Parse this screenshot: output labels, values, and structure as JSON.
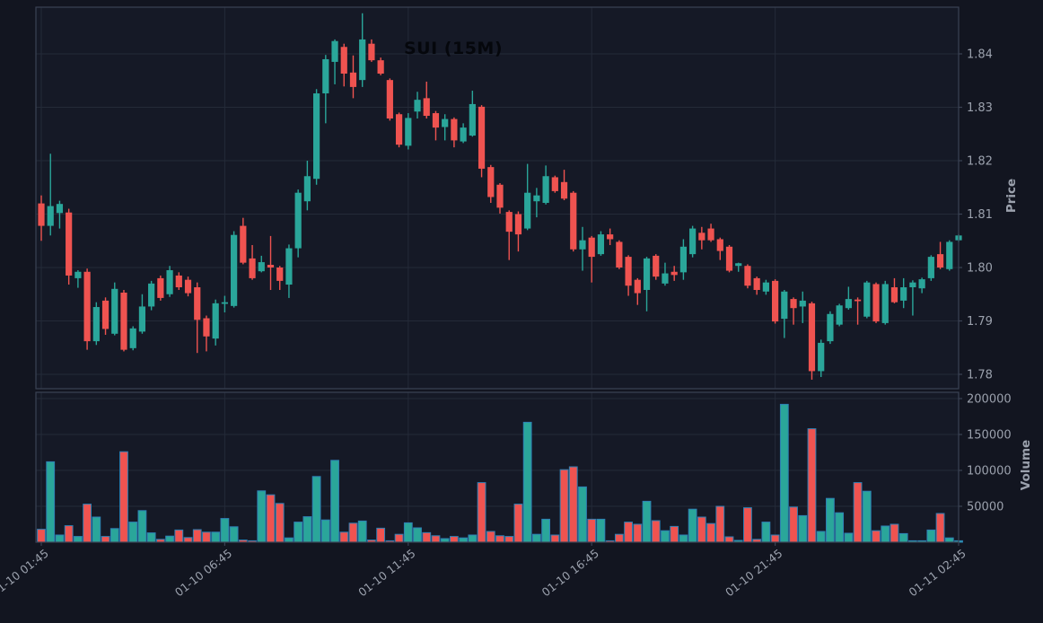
{
  "chart_data": {
    "type": "candlestick",
    "title": "SUI (15M)",
    "symbol": "SUI",
    "interval": "15M",
    "start_time": "01-10 01:45",
    "interval_minutes": 15,
    "x_tick_labels": [
      "01-10 01:45",
      "01-10 06:45",
      "01-10 11:45",
      "01-10 16:45",
      "01-10 21:45",
      "01-11 02:45"
    ],
    "x_tick_candle_indices": [
      0,
      20,
      40,
      60,
      80,
      100
    ],
    "price_axis": {
      "label": "Price",
      "min": 1.775,
      "max": 1.848,
      "ticks": [
        1.78,
        1.79,
        1.8,
        1.81,
        1.82,
        1.83,
        1.84
      ],
      "tick_labels": [
        "1.78",
        "1.79",
        "1.80",
        "1.81",
        "1.82",
        "1.83",
        "1.84"
      ]
    },
    "volume_axis": {
      "label": "Volume",
      "min": 0,
      "max": 200000,
      "ticks": [
        50000,
        100000,
        150000,
        200000
      ],
      "tick_labels": [
        "50000",
        "100000",
        "150000",
        "200000"
      ]
    },
    "colors": {
      "up": "#2aa69a",
      "down": "#ef5350",
      "volume_edge": "#2e80b5",
      "grid": "#242a38",
      "spine": "#3b4254",
      "pane_bg": "#151926",
      "figure_bg": "#121520",
      "tick_text": "#9ba1ad",
      "title_text": "#05070c"
    },
    "grid": true,
    "legend": false,
    "columns": [
      "open",
      "high",
      "low",
      "close",
      "volume"
    ],
    "candles": [
      [
        1.812,
        1.8135,
        1.805,
        1.8078,
        18000
      ],
      [
        1.8078,
        1.8213,
        1.806,
        1.8115,
        112000
      ],
      [
        1.8102,
        1.8125,
        1.8073,
        1.8119,
        10000
      ],
      [
        1.8103,
        1.811,
        1.7968,
        1.7985,
        23000
      ],
      [
        1.798,
        1.7995,
        1.7962,
        1.7992,
        8000
      ],
      [
        1.7992,
        1.7998,
        1.7846,
        1.7862,
        53000
      ],
      [
        1.7862,
        1.7935,
        1.7855,
        1.7926,
        35000
      ],
      [
        1.7938,
        1.7944,
        1.7874,
        1.7885,
        8000
      ],
      [
        1.7876,
        1.7972,
        1.7873,
        1.796,
        19000
      ],
      [
        1.7953,
        1.7958,
        1.7843,
        1.7846,
        126000
      ],
      [
        1.7849,
        1.789,
        1.7845,
        1.7886,
        28000
      ],
      [
        1.788,
        1.795,
        1.7876,
        1.7927,
        44000
      ],
      [
        1.7927,
        1.7975,
        1.792,
        1.797,
        13000
      ],
      [
        1.798,
        1.7985,
        1.7938,
        1.7943,
        4000
      ],
      [
        1.795,
        1.8003,
        1.7945,
        1.7995,
        8500
      ],
      [
        1.7985,
        1.7991,
        1.7958,
        1.7963,
        17000
      ],
      [
        1.7977,
        1.7983,
        1.7946,
        1.7952,
        6500
      ],
      [
        1.7963,
        1.7972,
        1.784,
        1.7902,
        17500
      ],
      [
        1.7905,
        1.791,
        1.7843,
        1.7871,
        14000
      ],
      [
        1.7867,
        1.794,
        1.7854,
        1.7933,
        14000
      ],
      [
        1.7932,
        1.7947,
        1.7916,
        1.7935,
        33000
      ],
      [
        1.7928,
        1.8068,
        1.7925,
        1.8061,
        21500
      ],
      [
        1.8078,
        1.8093,
        1.8006,
        1.8009,
        3000
      ],
      [
        1.8017,
        1.8042,
        1.7977,
        1.798,
        2000
      ],
      [
        1.7993,
        1.8022,
        1.7991,
        1.801,
        71500
      ],
      [
        1.8005,
        1.8059,
        1.7958,
        1.8,
        66000
      ],
      [
        1.8,
        1.8003,
        1.7958,
        1.7975,
        54000
      ],
      [
        1.7968,
        1.8043,
        1.7943,
        1.8036,
        6000
      ],
      [
        1.8036,
        1.8146,
        1.8019,
        1.814,
        28000
      ],
      [
        1.8124,
        1.82,
        1.8107,
        1.8171,
        35500
      ],
      [
        1.8166,
        1.8334,
        1.8155,
        1.8326,
        91500
      ],
      [
        1.8326,
        1.8398,
        1.827,
        1.839,
        31000
      ],
      [
        1.8385,
        1.8427,
        1.8343,
        1.8424,
        114000
      ],
      [
        1.8413,
        1.8419,
        1.8339,
        1.8363,
        14000
      ],
      [
        1.8365,
        1.8397,
        1.8317,
        1.8338,
        26500
      ],
      [
        1.8351,
        1.8476,
        1.8338,
        1.8427,
        29500
      ],
      [
        1.8419,
        1.8427,
        1.8385,
        1.8388,
        3000
      ],
      [
        1.8388,
        1.8393,
        1.836,
        1.8363,
        19500
      ],
      [
        1.8351,
        1.8354,
        1.8275,
        1.8279,
        2000
      ],
      [
        1.8287,
        1.829,
        1.8225,
        1.823,
        11000
      ],
      [
        1.8228,
        1.8289,
        1.8221,
        1.828,
        27000
      ],
      [
        1.8292,
        1.8329,
        1.8279,
        1.8314,
        20000
      ],
      [
        1.8317,
        1.8348,
        1.8279,
        1.8284,
        13300
      ],
      [
        1.8289,
        1.8293,
        1.8238,
        1.8262,
        9000
      ],
      [
        1.8263,
        1.8287,
        1.8238,
        1.8278,
        5000
      ],
      [
        1.8278,
        1.8281,
        1.8225,
        1.8238,
        8000
      ],
      [
        1.8236,
        1.827,
        1.8233,
        1.8262,
        6000
      ],
      [
        1.8247,
        1.8331,
        1.8245,
        1.8306,
        10000
      ],
      [
        1.8301,
        1.8304,
        1.8169,
        1.8185,
        83000
      ],
      [
        1.8188,
        1.8192,
        1.8121,
        1.8132,
        15000
      ],
      [
        1.8155,
        1.8158,
        1.8101,
        1.8112,
        9000
      ],
      [
        1.8104,
        1.8107,
        1.8014,
        1.8067,
        8000
      ],
      [
        1.81,
        1.8105,
        1.803,
        1.8062,
        53000
      ],
      [
        1.8073,
        1.8194,
        1.807,
        1.814,
        167000
      ],
      [
        1.8124,
        1.8149,
        1.8094,
        1.8135,
        11000
      ],
      [
        1.8121,
        1.8191,
        1.8118,
        1.8171,
        32000
      ],
      [
        1.8169,
        1.8172,
        1.814,
        1.8143,
        10000
      ],
      [
        1.816,
        1.8183,
        1.8126,
        1.8129,
        101000
      ],
      [
        1.814,
        1.8143,
        1.803,
        1.8034,
        105000
      ],
      [
        1.8034,
        1.8076,
        1.7994,
        1.8051,
        77000
      ],
      [
        1.8056,
        1.8059,
        1.7972,
        1.802,
        32000
      ],
      [
        1.8025,
        1.8068,
        1.8022,
        1.8062,
        32000
      ],
      [
        1.8062,
        1.8073,
        1.8042,
        1.8053,
        2000
      ],
      [
        1.8048,
        1.8051,
        1.7997,
        1.8,
        11000
      ],
      [
        1.802,
        1.8023,
        1.7947,
        1.7966,
        28000
      ],
      [
        1.7977,
        1.798,
        1.793,
        1.7952,
        25000
      ],
      [
        1.7958,
        1.802,
        1.7918,
        1.8017,
        57000
      ],
      [
        1.8022,
        1.8025,
        1.7977,
        1.7983,
        30000
      ],
      [
        1.797,
        1.8009,
        1.7966,
        1.7989,
        16000
      ],
      [
        1.7992,
        1.8003,
        1.7975,
        1.7986,
        22000
      ],
      [
        1.7991,
        1.8053,
        1.7977,
        1.8039,
        10000
      ],
      [
        1.8025,
        1.8078,
        1.8019,
        1.8073,
        46000
      ],
      [
        1.8065,
        1.8076,
        1.8034,
        1.8051,
        35000
      ],
      [
        1.8073,
        1.8082,
        1.8048,
        1.8051,
        26000
      ],
      [
        1.8053,
        1.8056,
        1.8014,
        1.8031,
        50000
      ],
      [
        1.8039,
        1.8042,
        1.7991,
        1.7994,
        7500
      ],
      [
        1.8003,
        1.8009,
        1.7992,
        1.8008,
        2500
      ],
      [
        1.8003,
        1.8006,
        1.7961,
        1.7966,
        48000
      ],
      [
        1.798,
        1.7983,
        1.7949,
        1.7958,
        4000
      ],
      [
        1.7955,
        1.7977,
        1.7949,
        1.7972,
        28000
      ],
      [
        1.7975,
        1.7978,
        1.7895,
        1.7899,
        10000
      ],
      [
        1.7904,
        1.7958,
        1.7868,
        1.7955,
        192000
      ],
      [
        1.7941,
        1.7944,
        1.7893,
        1.7924,
        49000
      ],
      [
        1.7927,
        1.7955,
        1.7896,
        1.7938,
        37000
      ],
      [
        1.7933,
        1.7936,
        1.779,
        1.7806,
        158000
      ],
      [
        1.7806,
        1.7865,
        1.7795,
        1.7859,
        15000
      ],
      [
        1.7862,
        1.7918,
        1.7857,
        1.7913,
        61000
      ],
      [
        1.7893,
        1.7932,
        1.789,
        1.7929,
        41000
      ],
      [
        1.7924,
        1.7964,
        1.7921,
        1.7941,
        12500
      ],
      [
        1.794,
        1.7944,
        1.7893,
        1.7937,
        83000
      ],
      [
        1.7908,
        1.7975,
        1.7905,
        1.7972,
        71000
      ],
      [
        1.7969,
        1.7972,
        1.7896,
        1.7899,
        16000
      ],
      [
        1.7896,
        1.7975,
        1.7893,
        1.7969,
        22500
      ],
      [
        1.7963,
        1.798,
        1.7933,
        1.7935,
        25000
      ],
      [
        1.7938,
        1.798,
        1.7924,
        1.7963,
        12000
      ],
      [
        1.7963,
        1.7976,
        1.791,
        1.7972,
        2000
      ],
      [
        1.7961,
        1.7981,
        1.7952,
        1.7978,
        2000
      ],
      [
        1.798,
        1.8023,
        1.7975,
        1.802,
        17000
      ],
      [
        1.8025,
        1.8048,
        1.7997,
        1.8,
        40000
      ],
      [
        1.7997,
        1.8051,
        1.7994,
        1.8048,
        6000
      ],
      [
        1.8051,
        1.8062,
        1.8048,
        1.806,
        2000
      ]
    ]
  }
}
